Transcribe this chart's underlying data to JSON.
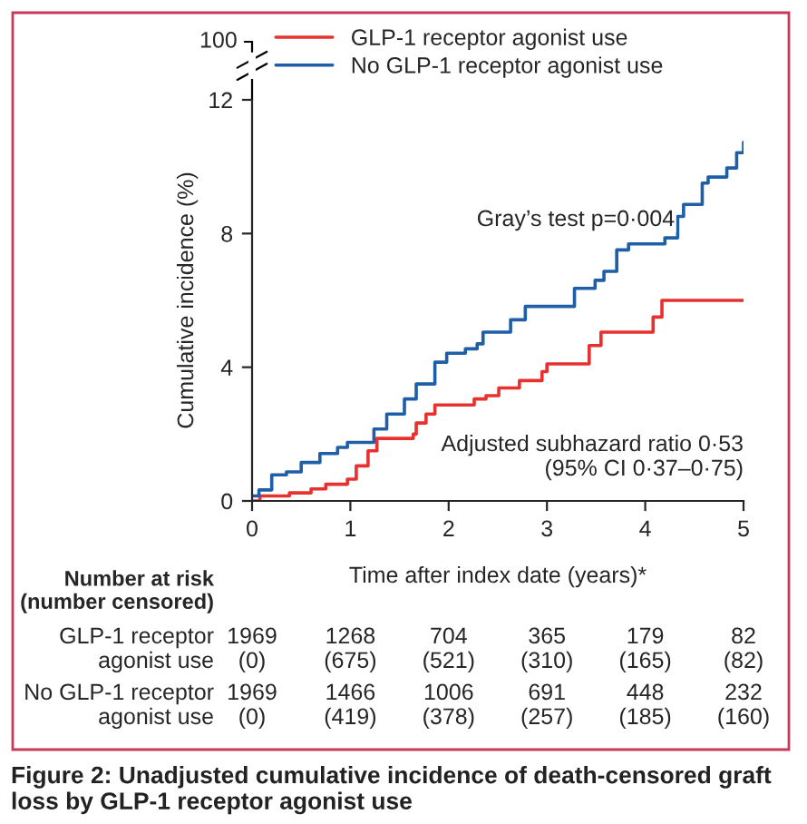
{
  "chart_data": {
    "type": "step",
    "title": "Figure 2: Unadjusted cumulative incidence of death-censored graft loss by GLP-1 receptor agonist use",
    "xlabel": "Time after index date (years)*",
    "ylabel": "Cumulative incidence (%)",
    "xlim": [
      0,
      5
    ],
    "xticks": [
      0,
      1,
      2,
      3,
      4,
      5
    ],
    "ylim": [
      0,
      12
    ],
    "yticks": [
      0,
      4,
      8,
      12
    ],
    "grid": false,
    "legend": "top left",
    "line_style": "solid",
    "marker": "none",
    "series": [
      {
        "name": "GLP-1 receptor agonist use",
        "color": "#e8312f",
        "x": [
          0,
          0.08,
          0.38,
          0.6,
          0.75,
          0.97,
          1.06,
          1.18,
          1.27,
          1.64,
          1.67,
          1.77,
          1.86,
          2.26,
          2.38,
          2.51,
          2.72,
          2.95,
          3.0,
          3.43,
          3.55,
          4.08,
          4.17,
          5.0
        ],
        "values": [
          0,
          0.15,
          0.24,
          0.36,
          0.5,
          0.65,
          1.05,
          1.5,
          1.87,
          2.0,
          2.33,
          2.6,
          2.87,
          3.05,
          3.15,
          3.38,
          3.6,
          3.87,
          4.1,
          4.65,
          5.05,
          5.5,
          6.0,
          6.0
        ]
      },
      {
        "name": "No GLP-1 receptor agonist use",
        "color": "#1f5fa8",
        "x": [
          0,
          0.07,
          0.2,
          0.35,
          0.5,
          0.69,
          0.87,
          0.97,
          1.24,
          1.37,
          1.55,
          1.67,
          1.86,
          1.98,
          2.17,
          2.29,
          2.35,
          2.63,
          2.78,
          3.28,
          3.49,
          3.58,
          3.71,
          3.83,
          4.2,
          4.33,
          4.39,
          4.58,
          4.64,
          4.83,
          4.93,
          5.0
        ],
        "values": [
          0.15,
          0.33,
          0.78,
          0.87,
          1.15,
          1.42,
          1.6,
          1.75,
          2.15,
          2.6,
          3.05,
          3.5,
          4.15,
          4.42,
          4.55,
          4.7,
          5.05,
          5.42,
          5.82,
          6.36,
          6.6,
          6.87,
          7.51,
          7.69,
          7.87,
          8.51,
          8.87,
          9.51,
          9.69,
          9.96,
          10.42,
          10.73
        ]
      }
    ],
    "annotations": [
      "Gray’s test p=0·004",
      "Adjusted subhazard ratio 0·53\n(95% CI 0·37–0·75)",
      "100",
      "Number at risk\n(number censored)",
      "GLP-1 receptor\nagonist use",
      "1969\n(0)",
      "1268\n(675)",
      "704\n(521)",
      "365\n(310)",
      "179\n(165)",
      "82\n(82)",
      "No GLP-1 receptor\nagonist use",
      "1969\n(0)",
      "1466\n(419)",
      "1006\n(378)",
      "691\n(257)",
      "448\n(185)",
      "232\n(160)"
    ]
  }
}
